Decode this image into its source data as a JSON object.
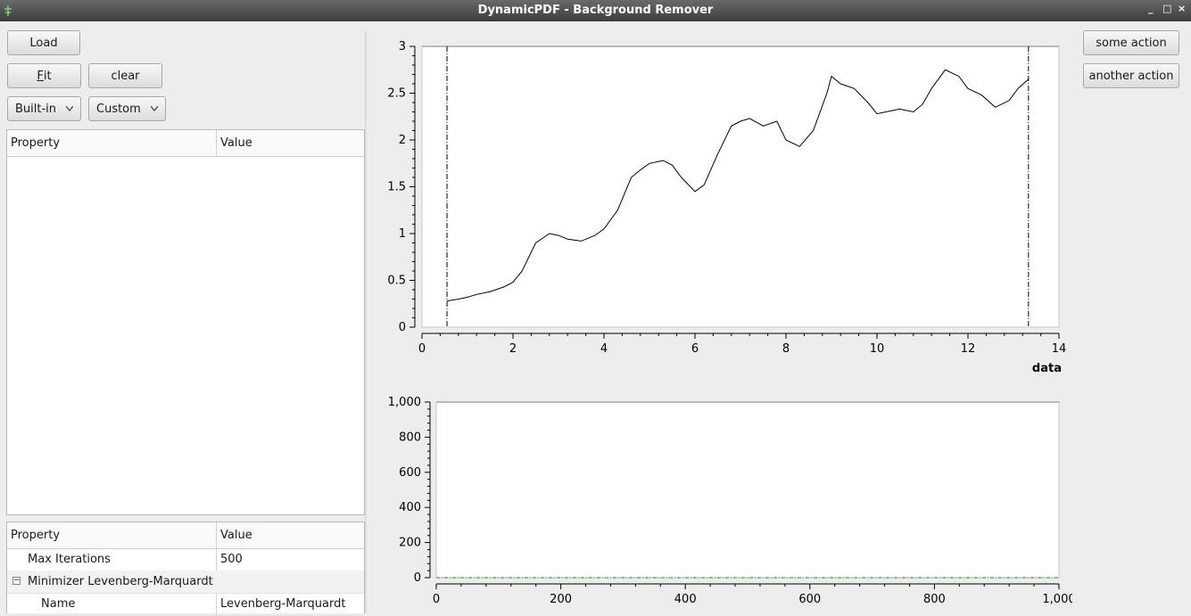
{
  "window": {
    "title": "DynamicPDF - Background Remover",
    "controls": [
      "_",
      "□",
      "×"
    ]
  },
  "toolbar": {
    "load_label": "Load",
    "fit_label": "Fit",
    "fit_mnemonic": "F",
    "fit_rest": "it",
    "clear_label": "clear",
    "builtin_label": "Built-in",
    "custom_label": "Custom",
    "some_action_label": "some action",
    "another_action_label": "another action"
  },
  "upper_table": {
    "headers": [
      "Property",
      "Value"
    ]
  },
  "lower_table": {
    "headers": [
      "Property",
      "Value"
    ],
    "rows": [
      {
        "property": "Max Iterations",
        "value": "500"
      },
      {
        "property": "Minimizer Levenberg-Marquardt",
        "value": "",
        "expander": "−"
      },
      {
        "property": "Name",
        "value": "Levenberg-Marquardt"
      }
    ]
  },
  "chart_data": [
    {
      "type": "line",
      "xlabel": "data",
      "xlim": [
        0,
        14
      ],
      "ylim": [
        0,
        3
      ],
      "x_ticks": [
        "0",
        "2",
        "4",
        "6",
        "8",
        "10",
        "12",
        "14"
      ],
      "y_ticks": [
        "0",
        "0.5",
        "1",
        "1.5",
        "2",
        "2.5",
        "3"
      ],
      "vertical_markers": [
        0.55,
        13.33
      ],
      "series": [
        {
          "x": [
            0.55,
            0.8,
            1.0,
            1.2,
            1.5,
            1.8,
            2.0,
            2.2,
            2.5,
            2.8,
            3.0,
            3.2,
            3.5,
            3.8,
            4.0,
            4.3,
            4.6,
            4.8,
            5.0,
            5.3,
            5.5,
            5.7,
            6.0,
            6.2,
            6.5,
            6.8,
            7.0,
            7.2,
            7.5,
            7.8,
            8.0,
            8.3,
            8.6,
            8.9,
            9.0,
            9.2,
            9.5,
            9.8,
            10.0,
            10.2,
            10.5,
            10.8,
            11.0,
            11.2,
            11.5,
            11.8,
            12.0,
            12.3,
            12.6,
            12.9,
            13.1,
            13.33
          ],
          "y": [
            0.28,
            0.3,
            0.32,
            0.35,
            0.38,
            0.43,
            0.48,
            0.6,
            0.9,
            1.0,
            0.98,
            0.94,
            0.92,
            0.98,
            1.05,
            1.25,
            1.6,
            1.68,
            1.75,
            1.78,
            1.73,
            1.6,
            1.45,
            1.52,
            1.85,
            2.15,
            2.2,
            2.23,
            2.15,
            2.2,
            2.0,
            1.93,
            2.1,
            2.5,
            2.68,
            2.6,
            2.55,
            2.4,
            2.28,
            2.3,
            2.33,
            2.3,
            2.38,
            2.55,
            2.75,
            2.68,
            2.55,
            2.48,
            2.35,
            2.42,
            2.55,
            2.65
          ]
        }
      ]
    },
    {
      "type": "line",
      "xlim": [
        0,
        1000
      ],
      "ylim": [
        0,
        1000
      ],
      "x_ticks": [
        "0",
        "200",
        "400",
        "600",
        "800",
        "1,000"
      ],
      "y_ticks": [
        "0",
        "200",
        "400",
        "600",
        "800",
        "1,000"
      ],
      "series": [
        {
          "x": [
            0,
            1000
          ],
          "y": [
            0,
            0
          ],
          "color": "#2e7d32"
        }
      ]
    }
  ]
}
